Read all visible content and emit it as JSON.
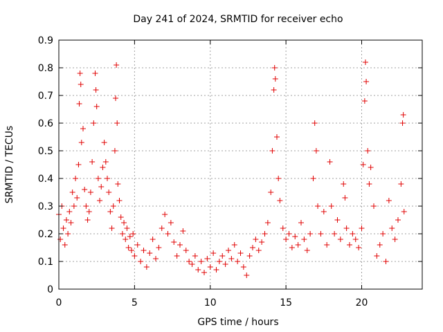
{
  "chart_data": {
    "type": "scatter",
    "title": "Day 241 of 2024, SRMTID for receiver echo",
    "xlabel": "GPS time / hours",
    "ylabel": "SRMTID / TECUs",
    "xlim": [
      0,
      24
    ],
    "ylim": [
      0,
      0.9
    ],
    "xticks": [
      0,
      5,
      10,
      15,
      20
    ],
    "xtick_labels": [
      "0",
      "5",
      "10",
      "15",
      "20"
    ],
    "yticks": [
      0,
      0.1,
      0.2,
      0.3,
      0.4,
      0.5,
      0.6,
      0.7,
      0.8,
      0.9
    ],
    "ytick_labels": [
      "0",
      "0.1",
      "0.2",
      "0.3",
      "0.4",
      "0.5",
      "0.6",
      "0.7",
      "0.8",
      "0.9"
    ],
    "grid": true,
    "marker": "+",
    "color": "#e00000",
    "series": [
      {
        "name": "SRMTID",
        "points": [
          [
            0.0,
            0.27
          ],
          [
            0.1,
            0.18
          ],
          [
            0.2,
            0.3
          ],
          [
            0.3,
            0.22
          ],
          [
            0.4,
            0.16
          ],
          [
            0.5,
            0.25
          ],
          [
            0.6,
            0.2
          ],
          [
            0.7,
            0.28
          ],
          [
            0.8,
            0.24
          ],
          [
            0.9,
            0.35
          ],
          [
            1.0,
            0.3
          ],
          [
            1.1,
            0.4
          ],
          [
            1.2,
            0.33
          ],
          [
            1.3,
            0.45
          ],
          [
            1.35,
            0.67
          ],
          [
            1.4,
            0.78
          ],
          [
            1.45,
            0.74
          ],
          [
            1.5,
            0.53
          ],
          [
            1.6,
            0.58
          ],
          [
            1.7,
            0.36
          ],
          [
            1.8,
            0.3
          ],
          [
            1.9,
            0.25
          ],
          [
            2.0,
            0.28
          ],
          [
            2.1,
            0.35
          ],
          [
            2.2,
            0.46
          ],
          [
            2.3,
            0.6
          ],
          [
            2.4,
            0.78
          ],
          [
            2.45,
            0.72
          ],
          [
            2.5,
            0.66
          ],
          [
            2.6,
            0.4
          ],
          [
            2.7,
            0.32
          ],
          [
            2.8,
            0.37
          ],
          [
            2.9,
            0.44
          ],
          [
            3.0,
            0.53
          ],
          [
            3.1,
            0.46
          ],
          [
            3.2,
            0.4
          ],
          [
            3.3,
            0.35
          ],
          [
            3.4,
            0.28
          ],
          [
            3.5,
            0.22
          ],
          [
            3.6,
            0.3
          ],
          [
            3.7,
            0.5
          ],
          [
            3.75,
            0.69
          ],
          [
            3.8,
            0.81
          ],
          [
            3.85,
            0.6
          ],
          [
            3.9,
            0.38
          ],
          [
            4.0,
            0.32
          ],
          [
            4.1,
            0.26
          ],
          [
            4.2,
            0.2
          ],
          [
            4.3,
            0.24
          ],
          [
            4.4,
            0.18
          ],
          [
            4.5,
            0.22
          ],
          [
            4.6,
            0.15
          ],
          [
            4.7,
            0.19
          ],
          [
            4.8,
            0.14
          ],
          [
            4.9,
            0.2
          ],
          [
            5.0,
            0.12
          ],
          [
            5.2,
            0.16
          ],
          [
            5.4,
            0.1
          ],
          [
            5.6,
            0.14
          ],
          [
            5.8,
            0.08
          ],
          [
            6.0,
            0.13
          ],
          [
            6.2,
            0.18
          ],
          [
            6.4,
            0.11
          ],
          [
            6.6,
            0.15
          ],
          [
            6.8,
            0.22
          ],
          [
            7.0,
            0.27
          ],
          [
            7.2,
            0.2
          ],
          [
            7.4,
            0.24
          ],
          [
            7.6,
            0.17
          ],
          [
            7.8,
            0.12
          ],
          [
            8.0,
            0.16
          ],
          [
            8.2,
            0.21
          ],
          [
            8.4,
            0.14
          ],
          [
            8.6,
            0.1
          ],
          [
            8.8,
            0.09
          ],
          [
            9.0,
            0.12
          ],
          [
            9.2,
            0.07
          ],
          [
            9.4,
            0.1
          ],
          [
            9.6,
            0.06
          ],
          [
            9.8,
            0.11
          ],
          [
            10.0,
            0.08
          ],
          [
            10.2,
            0.13
          ],
          [
            10.4,
            0.07
          ],
          [
            10.6,
            0.1
          ],
          [
            10.8,
            0.12
          ],
          [
            11.0,
            0.09
          ],
          [
            11.2,
            0.14
          ],
          [
            11.4,
            0.11
          ],
          [
            11.6,
            0.16
          ],
          [
            11.8,
            0.1
          ],
          [
            12.0,
            0.13
          ],
          [
            12.2,
            0.08
          ],
          [
            12.4,
            0.05
          ],
          [
            12.6,
            0.12
          ],
          [
            12.8,
            0.15
          ],
          [
            13.0,
            0.18
          ],
          [
            13.2,
            0.14
          ],
          [
            13.4,
            0.17
          ],
          [
            13.6,
            0.2
          ],
          [
            13.8,
            0.24
          ],
          [
            14.0,
            0.35
          ],
          [
            14.1,
            0.5
          ],
          [
            14.2,
            0.72
          ],
          [
            14.25,
            0.8
          ],
          [
            14.3,
            0.76
          ],
          [
            14.4,
            0.55
          ],
          [
            14.5,
            0.4
          ],
          [
            14.6,
            0.32
          ],
          [
            14.8,
            0.22
          ],
          [
            15.0,
            0.18
          ],
          [
            15.2,
            0.2
          ],
          [
            15.4,
            0.15
          ],
          [
            15.6,
            0.19
          ],
          [
            15.8,
            0.16
          ],
          [
            16.0,
            0.24
          ],
          [
            16.2,
            0.18
          ],
          [
            16.4,
            0.14
          ],
          [
            16.6,
            0.2
          ],
          [
            16.8,
            0.4
          ],
          [
            16.9,
            0.6
          ],
          [
            17.0,
            0.5
          ],
          [
            17.1,
            0.3
          ],
          [
            17.3,
            0.2
          ],
          [
            17.5,
            0.28
          ],
          [
            17.7,
            0.16
          ],
          [
            17.9,
            0.46
          ],
          [
            18.0,
            0.3
          ],
          [
            18.2,
            0.2
          ],
          [
            18.4,
            0.25
          ],
          [
            18.6,
            0.18
          ],
          [
            18.8,
            0.38
          ],
          [
            18.9,
            0.33
          ],
          [
            19.0,
            0.22
          ],
          [
            19.2,
            0.16
          ],
          [
            19.4,
            0.2
          ],
          [
            19.6,
            0.18
          ],
          [
            19.8,
            0.15
          ],
          [
            20.0,
            0.22
          ],
          [
            20.1,
            0.45
          ],
          [
            20.2,
            0.68
          ],
          [
            20.25,
            0.82
          ],
          [
            20.3,
            0.75
          ],
          [
            20.4,
            0.5
          ],
          [
            20.5,
            0.38
          ],
          [
            20.6,
            0.44
          ],
          [
            20.8,
            0.3
          ],
          [
            21.0,
            0.12
          ],
          [
            21.2,
            0.16
          ],
          [
            21.4,
            0.2
          ],
          [
            21.6,
            0.1
          ],
          [
            21.8,
            0.32
          ],
          [
            22.0,
            0.22
          ],
          [
            22.2,
            0.18
          ],
          [
            22.4,
            0.25
          ],
          [
            22.6,
            0.38
          ],
          [
            22.7,
            0.6
          ],
          [
            22.75,
            0.63
          ],
          [
            22.8,
            0.28
          ]
        ]
      }
    ]
  }
}
